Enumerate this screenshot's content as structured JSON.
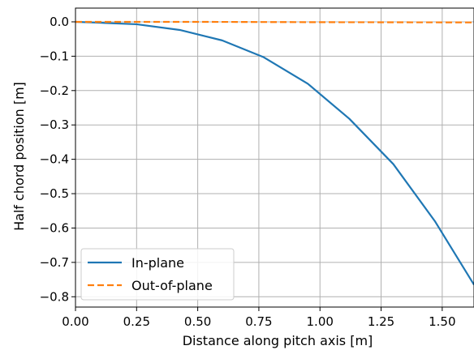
{
  "chart_data": {
    "type": "line",
    "xlabel": "Distance along pitch axis [m]",
    "ylabel": "Half chord position [m]",
    "xlim": [
      0.0,
      1.63
    ],
    "ylim": [
      -0.83,
      0.04
    ],
    "xticks": [
      0.0,
      0.25,
      0.5,
      0.75,
      1.0,
      1.25,
      1.5
    ],
    "xtick_labels": [
      "0.00",
      "0.25",
      "0.50",
      "0.75",
      "1.00",
      "1.25",
      "1.50"
    ],
    "yticks": [
      0.0,
      -0.1,
      -0.2,
      -0.3,
      -0.4,
      -0.5,
      -0.6,
      -0.7,
      -0.8
    ],
    "ytick_labels": [
      "0.0",
      "−0.1",
      "−0.2",
      "−0.3",
      "−0.4",
      "−0.5",
      "−0.6",
      "−0.7",
      "−0.8"
    ],
    "grid": true,
    "legend_position": "bottom-left",
    "series": [
      {
        "name": "In-plane",
        "color": "#1f77b4",
        "style": "solid",
        "x": [
          0.0,
          0.08,
          0.25,
          0.43,
          0.6,
          0.77,
          0.95,
          1.12,
          1.3,
          1.47,
          1.63
        ],
        "y": [
          0.0,
          -0.002,
          -0.007,
          -0.024,
          -0.054,
          -0.103,
          -0.18,
          -0.282,
          -0.414,
          -0.58,
          -0.765
        ]
      },
      {
        "name": "Out-of-plane",
        "color": "#ff7f0e",
        "style": "dashed",
        "x": [
          0.0,
          0.25,
          0.5,
          0.75,
          1.0,
          1.25,
          1.5,
          1.63
        ],
        "y": [
          0.0,
          0.0,
          0.0,
          -0.0005,
          -0.001,
          -0.0012,
          -0.0015,
          -0.0017
        ]
      }
    ]
  }
}
